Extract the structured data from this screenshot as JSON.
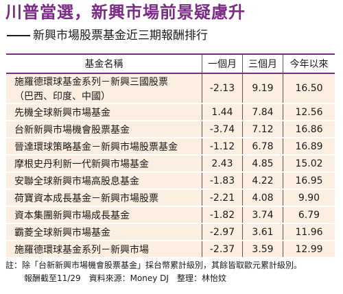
{
  "headline": "川普當選，新興市場前景疑慮升",
  "subtitle": "新興市場股票基金近三期報酬排行",
  "table": {
    "headers": [
      "基金名稱",
      "一個月",
      "三個月",
      "今年以來"
    ],
    "rows": [
      {
        "name": "施羅德環球基金系列－新興三國股票",
        "name2": "（巴西、印度、中國）",
        "m1": "-2.13",
        "m3": "9.19",
        "ytd": "16.50"
      },
      {
        "name": "先機全球新興市場基金",
        "m1": "1.44",
        "m3": "7.84",
        "ytd": "12.56"
      },
      {
        "name": "台新新興市場機會股票基金",
        "m1": "-3.74",
        "m3": "7.12",
        "ytd": "16.86"
      },
      {
        "name": "晉達環球策略基金－新興市場股票基金",
        "m1": "-1.12",
        "m3": "6.78",
        "ytd": "16.89"
      },
      {
        "name": "摩根史丹利新一代新興市場基金",
        "m1": "2.43",
        "m3": "4.85",
        "ytd": "15.02"
      },
      {
        "name": "安聯全球新興市場高股息基金",
        "m1": "-1.83",
        "m3": "4.22",
        "ytd": "16.95"
      },
      {
        "name": "荷寶資本成長基金－新興市場股票",
        "m1": "-2.21",
        "m3": "4.08",
        "ytd": "9.90"
      },
      {
        "name": "資本集團新興市場成長基金",
        "m1": "-1.82",
        "m3": "3.74",
        "ytd": "6.79"
      },
      {
        "name": "霸菱全球新興市場基金",
        "m1": "-2.97",
        "m3": "3.61",
        "ytd": "11.96"
      },
      {
        "name": "施羅德環球基金系列－新興市場",
        "m1": "-2.37",
        "m3": "3.59",
        "ytd": "12.99"
      }
    ]
  },
  "footnote": "註：除「台新新興市場機會股票基金」採台幣累計級別，其餘皆取歐元累計級別。",
  "source_line": "報酬截至11/29　資料來源：Money DJ　整理：林怡妏",
  "colors": {
    "accent": "#7b2a86",
    "row_bg": "#fcefe2"
  }
}
